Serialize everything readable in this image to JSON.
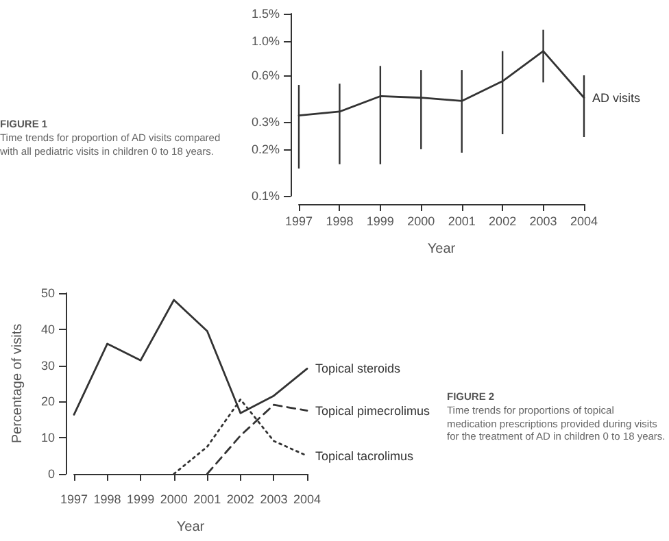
{
  "chart_data": [
    {
      "type": "line",
      "annotations": [
        "FIGURE 1",
        "Time trends for proportion of AD visits compared with all pediatric visits in children 0 to 18 years."
      ],
      "xlabel": "Year",
      "categories": [
        "1997",
        "1998",
        "1999",
        "2000",
        "2001",
        "2002",
        "2003",
        "2004"
      ],
      "series": [
        {
          "name": "AD visits",
          "color": "#333333",
          "values": [
            0.33,
            0.35,
            0.44,
            0.43,
            0.41,
            0.55,
            0.86,
            0.43
          ],
          "errors": [
            [
              0.15,
              0.52
            ],
            [
              0.16,
              0.53
            ],
            [
              0.16,
              0.69
            ],
            [
              0.2,
              0.65
            ],
            [
              0.19,
              0.65
            ],
            [
              0.25,
              0.86
            ],
            [
              0.54,
              1.18
            ],
            [
              0.24,
              0.6
            ]
          ]
        }
      ],
      "log": true,
      "ylim": [
        0.1,
        1.5
      ],
      "yticks": [
        {
          "value": 0.1,
          "label": "0.1%"
        },
        {
          "value": 0.2,
          "label": "0.2%"
        },
        {
          "value": 0.3,
          "label": "0.3%"
        },
        {
          "value": 0.6,
          "label": "0.6%"
        },
        {
          "value": 1.0,
          "label": "1.0%"
        },
        {
          "value": 1.5,
          "label": "1.5%"
        }
      ],
      "marker": "none"
    },
    {
      "type": "line",
      "annotations": [
        "FIGURE 2",
        "Time trends for proportions of topical medication prescriptions provided during visits for the treatment of AD in children 0 to 18 years."
      ],
      "xlabel": "Year",
      "ylabel": "Percentage of visits",
      "categories": [
        "1997",
        "1998",
        "1999",
        "2000",
        "2001",
        "2002",
        "2003",
        "2004"
      ],
      "series": [
        {
          "name": "Topical steroids",
          "color": "#333333",
          "line_style": "solid",
          "values": [
            16.4,
            36,
            31.4,
            48.1,
            39.5,
            16.8,
            21.6,
            29.1
          ]
        },
        {
          "name": "Topical pimecrolimus",
          "color": "#333333",
          "line_style": "dashed",
          "values": [
            null,
            null,
            null,
            null,
            0,
            10.6,
            19.1,
            17.5
          ]
        },
        {
          "name": "Topical tacrolimus",
          "color": "#333333",
          "line_style": "dotted",
          "values": [
            null,
            null,
            null,
            0,
            7.5,
            20.6,
            9.1,
            5
          ]
        }
      ],
      "ylim": [
        0,
        50
      ],
      "yticks": [
        0,
        10,
        20,
        30,
        40,
        50
      ],
      "marker": "none"
    }
  ]
}
